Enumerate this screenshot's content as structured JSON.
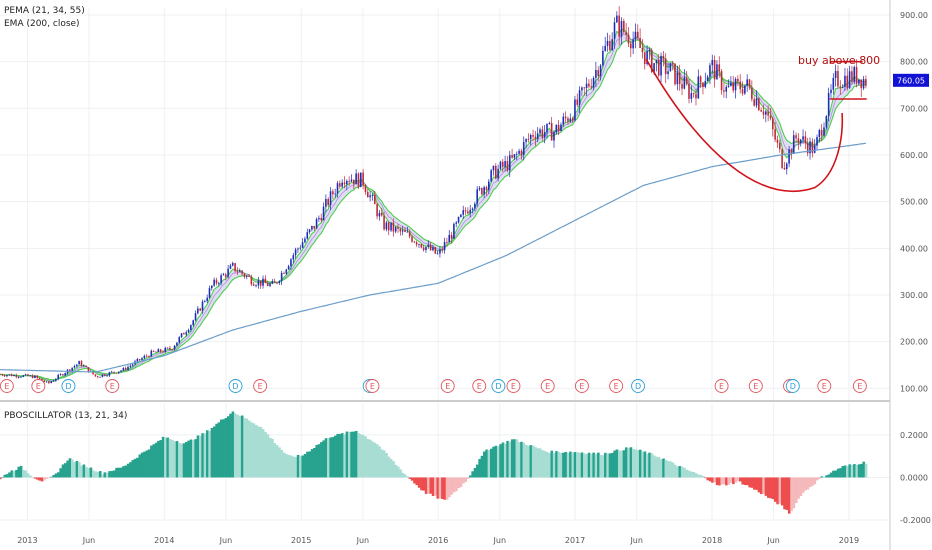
{
  "chart_data": [
    {
      "type": "candlestick",
      "legend": [
        "PEMA (21, 34, 55)",
        "EMA (200, close)"
      ],
      "y_ticks": [
        100,
        200,
        300,
        400,
        500,
        600,
        700,
        800,
        900
      ],
      "y_tick_labels": [
        "100.00",
        "200.00",
        "300.00",
        "400.00",
        "500.00",
        "600.00",
        "700.00",
        "800.00",
        "900.00"
      ],
      "ylim": [
        75,
        915
      ],
      "xlim": [
        2012.8,
        2019.3
      ],
      "last_price": 760.05,
      "last_price_label": "760.05",
      "price_anchors": [
        [
          2012.8,
          130
        ],
        [
          2013.05,
          125
        ],
        [
          2013.15,
          110
        ],
        [
          2013.25,
          130
        ],
        [
          2013.38,
          155
        ],
        [
          2013.5,
          125
        ],
        [
          2013.7,
          140
        ],
        [
          2013.9,
          175
        ],
        [
          2014.05,
          185
        ],
        [
          2014.2,
          240
        ],
        [
          2014.35,
          320
        ],
        [
          2014.5,
          360
        ],
        [
          2014.65,
          330
        ],
        [
          2014.8,
          320
        ],
        [
          2014.95,
          390
        ],
        [
          2015.1,
          450
        ],
        [
          2015.3,
          555
        ],
        [
          2015.45,
          545
        ],
        [
          2015.6,
          450
        ],
        [
          2015.8,
          425
        ],
        [
          2016.0,
          385
        ],
        [
          2016.2,
          480
        ],
        [
          2016.4,
          560
        ],
        [
          2016.55,
          590
        ],
        [
          2016.7,
          650
        ],
        [
          2016.85,
          650
        ],
        [
          2017.0,
          700
        ],
        [
          2017.15,
          780
        ],
        [
          2017.3,
          880
        ],
        [
          2017.42,
          850
        ],
        [
          2017.55,
          800
        ],
        [
          2017.7,
          780
        ],
        [
          2017.85,
          730
        ],
        [
          2018.0,
          790
        ],
        [
          2018.1,
          740
        ],
        [
          2018.25,
          750
        ],
        [
          2018.4,
          690
        ],
        [
          2018.52,
          580
        ],
        [
          2018.62,
          640
        ],
        [
          2018.75,
          610
        ],
        [
          2018.9,
          760
        ],
        [
          2019.05,
          770
        ],
        [
          2019.12,
          760
        ]
      ],
      "ema200_anchors": [
        [
          2012.8,
          140
        ],
        [
          2013.5,
          135
        ],
        [
          2014.0,
          170
        ],
        [
          2014.5,
          225
        ],
        [
          2015.0,
          265
        ],
        [
          2015.5,
          300
        ],
        [
          2016.0,
          325
        ],
        [
          2016.5,
          385
        ],
        [
          2017.0,
          460
        ],
        [
          2017.5,
          535
        ],
        [
          2018.0,
          575
        ],
        [
          2018.5,
          600
        ],
        [
          2019.0,
          620
        ],
        [
          2019.12,
          625
        ]
      ],
      "annotation": "buy above 800",
      "buy_line": 800,
      "support_line": 720,
      "events": [
        {
          "x": 2012.85,
          "label": "E"
        },
        {
          "x": 2013.08,
          "label": "E"
        },
        {
          "x": 2013.3,
          "label": "D"
        },
        {
          "x": 2013.62,
          "label": "E"
        },
        {
          "x": 2014.52,
          "label": "D"
        },
        {
          "x": 2014.7,
          "label": "E"
        },
        {
          "x": 2015.5,
          "label": "D"
        },
        {
          "x": 2015.52,
          "label": "E"
        },
        {
          "x": 2016.07,
          "label": "E"
        },
        {
          "x": 2016.3,
          "label": "E"
        },
        {
          "x": 2016.44,
          "label": "D"
        },
        {
          "x": 2016.55,
          "label": "E"
        },
        {
          "x": 2016.8,
          "label": "E"
        },
        {
          "x": 2017.05,
          "label": "E"
        },
        {
          "x": 2017.3,
          "label": "E"
        },
        {
          "x": 2017.46,
          "label": "D"
        },
        {
          "x": 2018.07,
          "label": "E"
        },
        {
          "x": 2018.32,
          "label": "E"
        },
        {
          "x": 2018.57,
          "label": "E"
        },
        {
          "x": 2018.59,
          "label": "D"
        },
        {
          "x": 2018.82,
          "label": "E"
        },
        {
          "x": 2019.08,
          "label": "E"
        }
      ]
    },
    {
      "type": "bar",
      "title": "PBOSCILLATOR (13, 21, 34)",
      "y_ticks": [
        -0.2,
        0,
        0.2
      ],
      "y_tick_labels": [
        "-0.2000",
        "0.0000",
        "0.2000"
      ],
      "ylim": [
        -0.2,
        0.35
      ],
      "osc_anchors": [
        [
          2012.8,
          -0.01
        ],
        [
          2012.85,
          0.02
        ],
        [
          2012.95,
          0.05
        ],
        [
          2013.05,
          0.0
        ],
        [
          2013.12,
          -0.02
        ],
        [
          2013.2,
          0.01
        ],
        [
          2013.3,
          0.09
        ],
        [
          2013.4,
          0.06
        ],
        [
          2013.55,
          0.02
        ],
        [
          2013.7,
          0.05
        ],
        [
          2013.85,
          0.12
        ],
        [
          2014.0,
          0.19
        ],
        [
          2014.15,
          0.16
        ],
        [
          2014.3,
          0.21
        ],
        [
          2014.5,
          0.31
        ],
        [
          2014.7,
          0.24
        ],
        [
          2014.9,
          0.1
        ],
        [
          2015.0,
          0.1
        ],
        [
          2015.2,
          0.19
        ],
        [
          2015.4,
          0.22
        ],
        [
          2015.55,
          0.16
        ],
        [
          2015.75,
          0.02
        ],
        [
          2015.9,
          -0.07
        ],
        [
          2016.05,
          -0.11
        ],
        [
          2016.2,
          -0.02
        ],
        [
          2016.35,
          0.13
        ],
        [
          2016.55,
          0.18
        ],
        [
          2016.8,
          0.12
        ],
        [
          2017.0,
          0.12
        ],
        [
          2017.2,
          0.11
        ],
        [
          2017.4,
          0.14
        ],
        [
          2017.6,
          0.1
        ],
        [
          2017.8,
          0.04
        ],
        [
          2017.95,
          0.0
        ],
        [
          2018.05,
          -0.04
        ],
        [
          2018.2,
          -0.02
        ],
        [
          2018.35,
          -0.07
        ],
        [
          2018.5,
          -0.13
        ],
        [
          2018.57,
          -0.17
        ],
        [
          2018.65,
          -0.08
        ],
        [
          2018.8,
          0.0
        ],
        [
          2018.95,
          0.05
        ],
        [
          2019.1,
          0.07
        ]
      ]
    }
  ],
  "x_ticks": [
    {
      "x": 2013.0,
      "label": "2013"
    },
    {
      "x": 2013.45,
      "label": "Jun"
    },
    {
      "x": 2014.0,
      "label": "2014"
    },
    {
      "x": 2014.45,
      "label": "Jun"
    },
    {
      "x": 2015.0,
      "label": "2015"
    },
    {
      "x": 2015.45,
      "label": "Jun"
    },
    {
      "x": 2016.0,
      "label": "2016"
    },
    {
      "x": 2016.45,
      "label": "Jun"
    },
    {
      "x": 2017.0,
      "label": "2017"
    },
    {
      "x": 2017.45,
      "label": "Jun"
    },
    {
      "x": 2018.0,
      "label": "2018"
    },
    {
      "x": 2018.45,
      "label": "Jun"
    },
    {
      "x": 2019.0,
      "label": "2019"
    }
  ],
  "colors": {
    "up": "#1d2db5",
    "down": "#c0283a",
    "green_line": "#4cd04c",
    "lavender_fill": "#d9d3f2",
    "ema200": "#6a9dc9",
    "cup": "#d1131a",
    "osc_up_strong": "#26a28e",
    "osc_up_weak": "#a8ddd4",
    "osc_down_strong": "#ee4d4d",
    "osc_down_weak": "#f5b9bb",
    "price_label_bg": "#1212d6"
  }
}
